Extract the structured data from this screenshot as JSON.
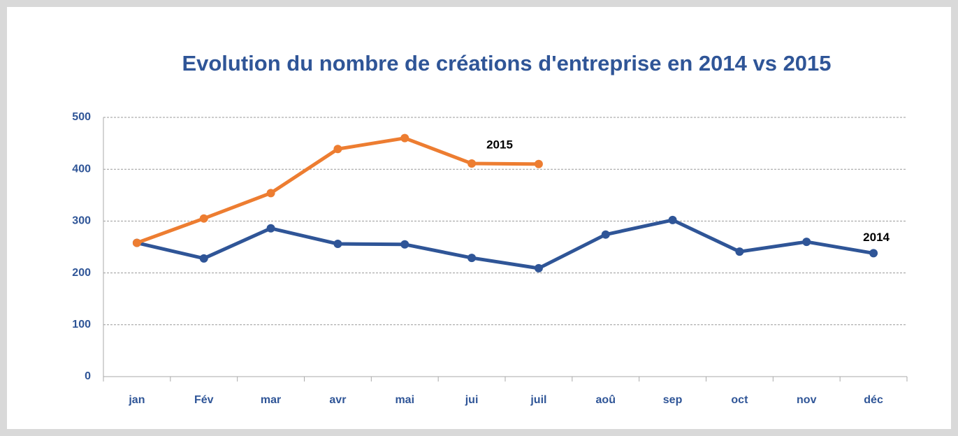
{
  "chart_data": {
    "type": "line",
    "title": "Evolution du nombre de créations d'entreprise en 2014 vs 2015",
    "categories": [
      "jan",
      "Fév",
      "mar",
      "avr",
      "mai",
      "jui",
      "juil",
      "aoû",
      "sep",
      "oct",
      "nov",
      "déc"
    ],
    "series": [
      {
        "name": "2014",
        "color": "#2f5597",
        "values": [
          258,
          228,
          286,
          256,
          255,
          229,
          209,
          274,
          302,
          241,
          260,
          238
        ]
      },
      {
        "name": "2015",
        "color": "#ed7d31",
        "values": [
          258,
          305,
          354,
          439,
          460,
          411,
          410,
          null,
          null,
          null,
          null,
          null
        ]
      }
    ],
    "ylim": [
      0,
      500
    ],
    "yticks": [
      0,
      100,
      200,
      300,
      400,
      500
    ],
    "grid": true
  }
}
